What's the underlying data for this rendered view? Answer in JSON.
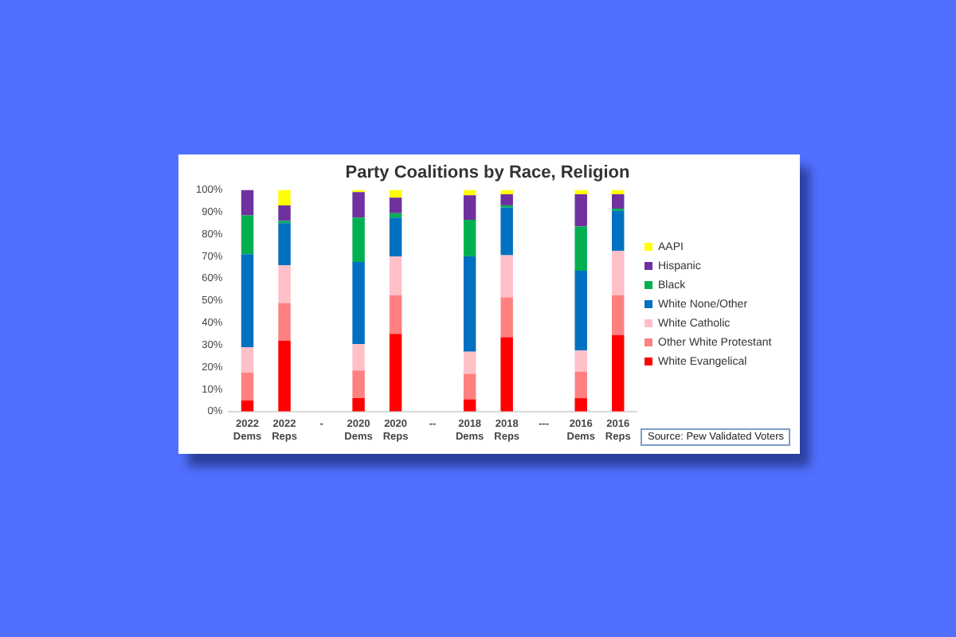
{
  "chart_data": {
    "type": "bar",
    "title": "Party Coalitions by Race, Religion",
    "stacked": true,
    "legend": "right",
    "grid": false,
    "categories": [
      "2022 Dems",
      "2022 Reps",
      "-",
      "2020 Dems",
      "2020 Reps",
      "--",
      "2018 Dems",
      "2018 Reps",
      "---",
      "2016 Dems",
      "2016 Reps"
    ],
    "ylim": [
      0,
      100
    ],
    "yticks": [
      {
        "value": 0,
        "label": "0%"
      },
      {
        "value": 10,
        "label": "10%"
      },
      {
        "value": 20,
        "label": "20%"
      },
      {
        "value": 30,
        "label": "30%"
      },
      {
        "value": 40,
        "label": "40%"
      },
      {
        "value": 50,
        "label": "50%"
      },
      {
        "value": 60,
        "label": "60%"
      },
      {
        "value": 70,
        "label": "70%"
      },
      {
        "value": 80,
        "label": "80%"
      },
      {
        "value": 90,
        "label": "90%"
      },
      {
        "value": 100,
        "label": "100%"
      }
    ],
    "series": [
      {
        "name": "White Evangelical",
        "color": "#ff0000",
        "values": [
          5,
          32,
          null,
          6,
          35,
          null,
          5.5,
          33.5,
          null,
          6,
          34.5
        ]
      },
      {
        "name": "Other White Protestant",
        "color": "#ff8080",
        "values": [
          12.5,
          17,
          null,
          12.5,
          17.5,
          null,
          11.5,
          18,
          null,
          12,
          18
        ]
      },
      {
        "name": "White Catholic",
        "color": "#ffc0c8",
        "values": [
          11.5,
          17,
          null,
          12,
          17.5,
          null,
          10,
          19,
          null,
          9.5,
          20
        ]
      },
      {
        "name": "White None/Other",
        "color": "#0070c0",
        "values": [
          42,
          19,
          null,
          37,
          17.5,
          null,
          43,
          21.5,
          null,
          36,
          18
        ]
      },
      {
        "name": "Black",
        "color": "#00b050",
        "values": [
          17.5,
          1,
          null,
          20,
          2,
          null,
          16.5,
          1,
          null,
          20,
          1
        ]
      },
      {
        "name": "Hispanic",
        "color": "#7030a0",
        "values": [
          11.5,
          7,
          null,
          11.5,
          7,
          null,
          11,
          5,
          null,
          14.5,
          6.5
        ]
      },
      {
        "name": "AAPI",
        "color": "#ffff00",
        "values": [
          0,
          7,
          null,
          1,
          3.5,
          null,
          2.5,
          2,
          null,
          2,
          2
        ]
      }
    ],
    "annotations": [
      "Source: Pew Validated Voters"
    ]
  }
}
